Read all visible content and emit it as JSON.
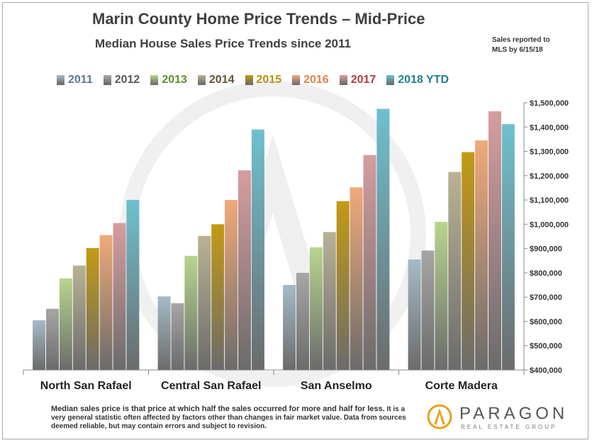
{
  "title": "Marin County Home Price Trends – Mid-Price",
  "subtitle": "Median House Sales Price Trends since 2011",
  "note": [
    "Sales reported to",
    "MLS by 6/15/18"
  ],
  "footer": {
    "lead": "Median sales price is that price at which half the sales occurred for more and half for less.",
    "rest": "It is a very general statistic often affected by factors other than changes in fair market value. Data from sources deemed reliable, but may contain errors and subject to revision."
  },
  "logo": {
    "name": "PARAGON",
    "tagline": "REAL ESTATE GROUP",
    "icon": "paragon-a-logo-icon"
  },
  "chart_data": {
    "type": "bar",
    "categories": [
      "North San Rafael",
      "Central San Rafael",
      "San Anselmo",
      "Corte Madera"
    ],
    "series": [
      {
        "name": "2011",
        "color": "#a6bac6",
        "label_color": "#5b7a8c",
        "values": [
          605000,
          703000,
          750000,
          855000
        ]
      },
      {
        "name": "2012",
        "color": "#a6a6a6",
        "label_color": "#595959",
        "values": [
          652000,
          675000,
          800000,
          892000
        ]
      },
      {
        "name": "2013",
        "color": "#b7d58d",
        "label_color": "#5f8a2e",
        "values": [
          777000,
          870000,
          905000,
          1010000
        ]
      },
      {
        "name": "2014",
        "color": "#b9b294",
        "label_color": "#5e5637",
        "values": [
          830000,
          952000,
          968000,
          1215000
        ]
      },
      {
        "name": "2015",
        "color": "#c39a14",
        "label_color": "#b8900f",
        "values": [
          902000,
          1000000,
          1095000,
          1297000
        ]
      },
      {
        "name": "2016",
        "color": "#f0a97a",
        "label_color": "#e0824a",
        "values": [
          955000,
          1100000,
          1152000,
          1345000
        ]
      },
      {
        "name": "2017",
        "color": "#d69d9f",
        "label_color": "#b03a3f",
        "values": [
          1005000,
          1222000,
          1285000,
          1465000
        ]
      },
      {
        "name": "2018 YTD",
        "color": "#6fc0cf",
        "label_color": "#1f7f93",
        "values": [
          1100000,
          1390000,
          1475000,
          1412000
        ]
      }
    ],
    "ylim": [
      400000,
      1500000
    ],
    "yticks": [
      400000,
      500000,
      600000,
      700000,
      800000,
      900000,
      1000000,
      1100000,
      1200000,
      1300000,
      1400000,
      1500000
    ],
    "ytick_labels": [
      "$400,000",
      "$500,000",
      "$600,000",
      "$700,000",
      "$800,000",
      "$900,000",
      "$1,000,000",
      "$1,100,000",
      "$1,200,000",
      "$1,300,000",
      "$1,400,000",
      "$1,500,000"
    ],
    "grid": false,
    "legend": "top"
  }
}
